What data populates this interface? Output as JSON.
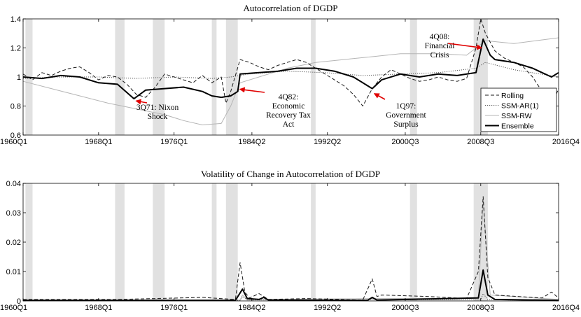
{
  "chart_data": [
    {
      "type": "line",
      "title": "Autocorrelation of DGDP",
      "xlabel": "",
      "ylabel": "",
      "xlim": [
        1960.0,
        2016.75
      ],
      "ylim": [
        0.6,
        1.4
      ],
      "x_ticks": [
        1960.0,
        1968.0,
        1976.0,
        1984.25,
        1992.25,
        2000.5,
        2008.5,
        2016.75
      ],
      "x_tick_labels": [
        "1960Q1",
        "1968Q1",
        "1976Q1",
        "1984Q2",
        "1992Q2",
        "2000Q3",
        "2008Q3",
        "2016Q4"
      ],
      "y_ticks": [
        0.6,
        0.8,
        1.0,
        1.2,
        1.4
      ],
      "y_tick_labels": [
        "0.6",
        "0.8",
        "1",
        "1.2",
        "1.4"
      ],
      "grid": false,
      "legend_position": "bottom-right",
      "recessions": [
        [
          1960.25,
          1961.0
        ],
        [
          1969.75,
          1970.75
        ],
        [
          1973.75,
          1975.0
        ],
        [
          1980.0,
          1980.5
        ],
        [
          1981.5,
          1982.75
        ],
        [
          1990.5,
          1991.0
        ],
        [
          2001.0,
          2001.75
        ],
        [
          2007.75,
          2009.25
        ]
      ],
      "series": [
        {
          "name": "Rolling",
          "style": "dashed",
          "color": "#1a1a1a",
          "x": [
            1960,
            1961,
            1962,
            1963,
            1964,
            1965,
            1966,
            1967,
            1968,
            1969,
            1970,
            1971,
            1972,
            1973,
            1974,
            1975,
            1976,
            1977,
            1978,
            1979,
            1980,
            1981,
            1981.5,
            1982,
            1983,
            1984,
            1985,
            1986,
            1987,
            1988,
            1989,
            1990,
            1991,
            1992,
            1993,
            1994,
            1995,
            1996,
            1997,
            1998,
            1999,
            2000,
            2001,
            2002,
            2003,
            2004,
            2005,
            2006,
            2007,
            2008,
            2008.5,
            2009,
            2010,
            2011,
            2012,
            2013,
            2014,
            2015,
            2016,
            2016.75
          ],
          "y": [
            1.02,
            0.98,
            1.03,
            1.01,
            1.04,
            1.06,
            1.07,
            1.03,
            0.98,
            1.01,
            1.0,
            0.95,
            0.88,
            0.86,
            0.93,
            1.02,
            1.0,
            0.98,
            0.96,
            1.01,
            0.96,
            1.0,
            0.82,
            0.9,
            1.12,
            1.1,
            1.07,
            1.05,
            1.08,
            1.1,
            1.12,
            1.1,
            1.06,
            1.02,
            0.98,
            0.94,
            0.88,
            0.8,
            0.92,
            1.0,
            1.05,
            1.02,
            0.99,
            0.97,
            0.98,
            1.0,
            0.98,
            0.97,
            0.99,
            1.2,
            1.4,
            1.3,
            1.18,
            1.13,
            1.1,
            1.07,
            1.0,
            0.9,
            0.8,
            0.92
          ]
        },
        {
          "name": "SSM-AR(1)",
          "style": "dotted",
          "color": "#555555",
          "x": [
            1960,
            1964,
            1968,
            1972,
            1976,
            1980,
            1982,
            1984,
            1988,
            1992,
            1996,
            2000,
            2004,
            2008,
            2009,
            2012,
            2016.75
          ],
          "y": [
            0.99,
            1.0,
            1.0,
            0.99,
            1.0,
            0.99,
            1.0,
            1.02,
            1.04,
            1.03,
            1.01,
            1.02,
            1.03,
            1.06,
            1.1,
            1.05,
            1.0
          ]
        },
        {
          "name": "SSM-RW",
          "style": "solid-light",
          "color": "#b5b5b5",
          "x": [
            1960,
            1963,
            1966,
            1969,
            1972,
            1975,
            1977,
            1979,
            1981,
            1982,
            1983,
            1985,
            1988,
            1991,
            1994,
            1997,
            2000,
            2004,
            2007,
            2008,
            2009,
            2012,
            2016.75
          ],
          "y": [
            0.97,
            0.92,
            0.87,
            0.82,
            0.78,
            0.74,
            0.7,
            0.67,
            0.68,
            0.8,
            0.96,
            1.0,
            1.06,
            1.1,
            1.12,
            1.14,
            1.16,
            1.16,
            1.15,
            1.2,
            1.25,
            1.23,
            1.27
          ]
        },
        {
          "name": "Ensemble",
          "style": "solid-bold",
          "color": "#000000",
          "x": [
            1960,
            1962,
            1964,
            1966,
            1968,
            1970,
            1971.75,
            1973,
            1975,
            1977,
            1979,
            1980,
            1981,
            1982,
            1982.75,
            1983,
            1985,
            1987,
            1989,
            1991,
            1993,
            1995,
            1997,
            1998,
            2000,
            2002,
            2004,
            2006,
            2008,
            2008.75,
            2009.5,
            2010,
            2012,
            2014,
            2015,
            2016,
            2016.75
          ],
          "y": [
            1.0,
            0.99,
            1.01,
            1.0,
            0.96,
            0.95,
            0.85,
            0.91,
            0.92,
            0.93,
            0.9,
            0.87,
            0.86,
            0.87,
            0.9,
            1.02,
            1.03,
            1.04,
            1.06,
            1.06,
            1.04,
            1.0,
            0.92,
            0.98,
            1.02,
            1.0,
            1.02,
            1.01,
            1.03,
            1.26,
            1.15,
            1.12,
            1.1,
            1.06,
            1.03,
            1.0,
            1.03
          ]
        }
      ],
      "annotations": [
        {
          "lines": [
            "3Q71: Nixon",
            "Shock"
          ],
          "x": 1971.75,
          "y": 0.85
        },
        {
          "lines": [
            "4Q82:",
            "Economic",
            "Recovery Tax",
            "Act"
          ],
          "x": 1982.75,
          "y": 0.93
        },
        {
          "lines": [
            "1Q97:",
            "Government",
            "Surplus"
          ],
          "x": 1997.0,
          "y": 0.9
        },
        {
          "lines": [
            "4Q08:",
            "Financial",
            "Crisis"
          ],
          "x": 2008.75,
          "y": 1.22
        }
      ]
    },
    {
      "type": "line",
      "title": "Volatility of Change in Autocorrelation of DGDP",
      "xlabel": "",
      "ylabel": "",
      "xlim": [
        1960.0,
        2016.75
      ],
      "ylim": [
        0,
        0.04
      ],
      "x_ticks": [
        1960.0,
        1968.0,
        1976.0,
        1984.25,
        1992.25,
        2000.5,
        2008.5,
        2016.75
      ],
      "x_tick_labels": [
        "1960Q1",
        "1968Q1",
        "1976Q1",
        "1984Q2",
        "1992Q2",
        "2000Q3",
        "2008Q3",
        "2016Q4"
      ],
      "y_ticks": [
        0,
        0.01,
        0.02,
        0.03,
        0.04
      ],
      "y_tick_labels": [
        "0",
        "0.01",
        "0.02",
        "0.03",
        "0.04"
      ],
      "grid": false,
      "recessions": [
        [
          1960.25,
          1961.0
        ],
        [
          1969.75,
          1970.75
        ],
        [
          1973.75,
          1975.0
        ],
        [
          1980.0,
          1980.5
        ],
        [
          1981.5,
          1982.75
        ],
        [
          1990.5,
          1991.0
        ],
        [
          2001.0,
          2001.75
        ],
        [
          2007.75,
          2009.25
        ]
      ],
      "series": [
        {
          "name": "Rolling",
          "style": "dashed",
          "color": "#1a1a1a",
          "x": [
            1960,
            1970,
            1979,
            1982.5,
            1983,
            1983.5,
            1984,
            1985,
            1986,
            1990,
            1996,
            1997,
            1997.5,
            1998,
            2003,
            2007,
            2008.25,
            2008.75,
            2009.25,
            2010,
            2015,
            2016,
            2016.75
          ],
          "y": [
            0.0005,
            0.0005,
            0.0012,
            0.0005,
            0.013,
            0.003,
            0.001,
            0.0025,
            0.0005,
            0.0008,
            0.0003,
            0.0075,
            0.0015,
            0.002,
            0.0015,
            0.0008,
            0.01,
            0.0355,
            0.008,
            0.002,
            0.001,
            0.003,
            0.001
          ]
        },
        {
          "name": "SSM-AR(1)",
          "style": "dotted",
          "color": "#555555",
          "x": [
            1960,
            1983,
            1983.25,
            1983.75,
            2008.5,
            2008.75,
            2009.25,
            2016.75
          ],
          "y": [
            0.0002,
            0.0002,
            0.0015,
            0.0003,
            0.0004,
            0.0025,
            0.0004,
            0.0002
          ]
        },
        {
          "name": "SSM-RW",
          "style": "solid-light",
          "color": "#b5b5b5",
          "x": [
            1960,
            1983,
            1983.25,
            1983.75,
            2008.25,
            2008.75,
            2009.5,
            2016.75
          ],
          "y": [
            0.0003,
            0.0003,
            0.002,
            0.0005,
            0.001,
            0.034,
            0.002,
            0.0005
          ]
        },
        {
          "name": "Ensemble",
          "style": "solid-bold",
          "color": "#000000",
          "x": [
            1960,
            1982.5,
            1983.25,
            1983.75,
            1985,
            1985.5,
            1986,
            1996.5,
            1997,
            1997.5,
            2008.25,
            2008.75,
            2009.25,
            2010,
            2016.75
          ],
          "y": [
            0.0002,
            0.0002,
            0.004,
            0.0008,
            0.0005,
            0.0012,
            0.0003,
            0.0002,
            0.0012,
            0.0003,
            0.001,
            0.0105,
            0.002,
            0.0005,
            0.0002
          ]
        }
      ]
    }
  ]
}
